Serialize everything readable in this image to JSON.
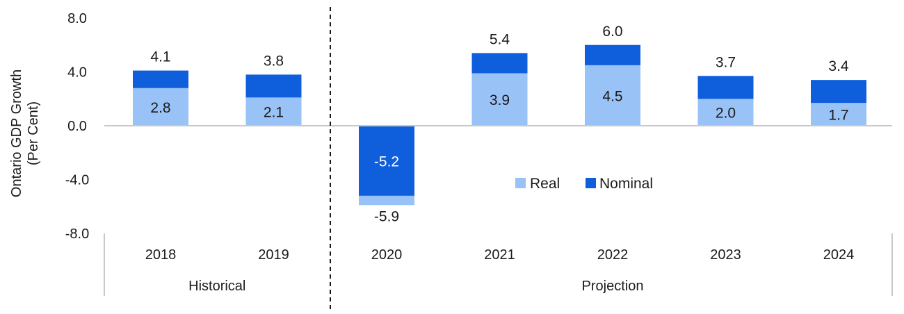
{
  "chart_data": {
    "type": "bar",
    "ylabel_line1": "Ontario GDP Growth",
    "ylabel_line2": "(Per Cent)",
    "ylim": [
      -8,
      8
    ],
    "yticks": [
      {
        "value": 8,
        "label": "8.0"
      },
      {
        "value": 4,
        "label": "4.0"
      },
      {
        "value": 0,
        "label": "0.0"
      },
      {
        "value": -4,
        "label": "-4.0"
      },
      {
        "value": -8,
        "label": "-8.0"
      }
    ],
    "categories": [
      "2018",
      "2019",
      "2020",
      "2021",
      "2022",
      "2023",
      "2024"
    ],
    "groups": [
      {
        "label": "Historical",
        "count": 2
      },
      {
        "label": "Projection",
        "count": 5
      }
    ],
    "series": [
      {
        "name": "Real",
        "color": "#99c2f7",
        "values": [
          2.8,
          2.1,
          -5.9,
          3.9,
          4.5,
          2.0,
          1.7
        ],
        "labels": [
          "2.8",
          "2.1",
          "-5.9",
          "3.9",
          "4.5",
          "2.0",
          "1.7"
        ]
      },
      {
        "name": "Nominal",
        "color": "#0f5fdc",
        "values": [
          4.1,
          3.8,
          -5.2,
          5.4,
          6.0,
          3.7,
          3.4
        ],
        "labels": [
          "4.1",
          "3.8",
          "-5.2",
          "5.4",
          "6.0",
          "3.7",
          "3.4"
        ]
      }
    ],
    "legend_position": "center-right",
    "grid": false
  }
}
